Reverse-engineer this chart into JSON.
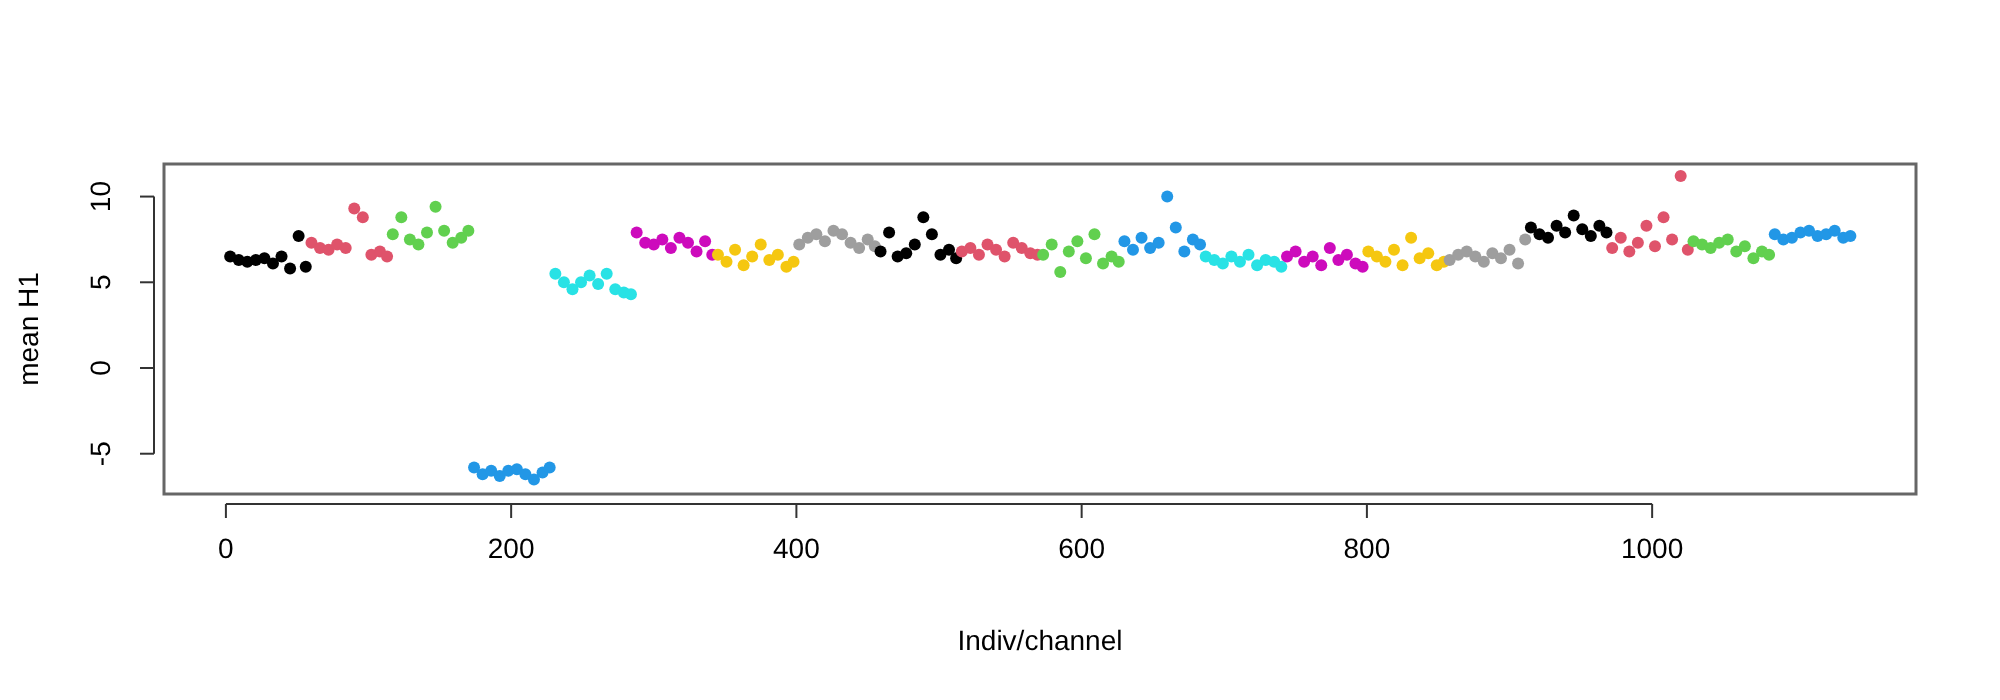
{
  "chart_data": {
    "type": "scatter",
    "xlabel": "Indiv/channel",
    "ylabel": "mean H1",
    "marker": "circle",
    "xlim": [
      -43.4,
      1185
    ],
    "ylim": [
      -7.35,
      11.9
    ],
    "xticks": [
      0,
      200,
      400,
      600,
      800,
      1000
    ],
    "yticks": [
      -5,
      0,
      5,
      10
    ],
    "series": [
      {
        "color": "#000000",
        "x": [
          3,
          9,
          15,
          21,
          27,
          33,
          39,
          45,
          51,
          56
        ],
        "values": [
          6.5,
          6.3,
          6.2,
          6.3,
          6.4,
          6.1,
          6.5,
          5.8,
          7.7,
          5.9
        ]
      },
      {
        "color": "#df536b",
        "x": [
          60,
          66,
          72,
          78,
          84,
          90,
          96,
          102,
          108,
          113
        ],
        "values": [
          7.3,
          7.0,
          6.9,
          7.2,
          7.0,
          9.3,
          8.8,
          6.6,
          6.8,
          6.5
        ]
      },
      {
        "color": "#61d04f",
        "x": [
          117,
          123,
          129,
          135,
          141,
          147,
          153,
          159,
          165,
          170
        ],
        "values": [
          7.8,
          8.8,
          7.5,
          7.2,
          7.9,
          9.4,
          8.0,
          7.3,
          7.6,
          8.0
        ]
      },
      {
        "color": "#2297e6",
        "x": [
          174,
          180,
          186,
          192,
          198,
          204,
          210,
          216,
          222,
          227
        ],
        "values": [
          -5.8,
          -6.2,
          -6.0,
          -6.3,
          -6.0,
          -5.9,
          -6.2,
          -6.5,
          -6.1,
          -5.8
        ]
      },
      {
        "color": "#28e2e5",
        "x": [
          231,
          237,
          243,
          249,
          255,
          261,
          267,
          273,
          279,
          284
        ],
        "values": [
          5.5,
          5.0,
          4.6,
          5.0,
          5.4,
          4.9,
          5.5,
          4.6,
          4.4,
          4.3
        ]
      },
      {
        "color": "#cd0bbc",
        "x": [
          288,
          294,
          300,
          306,
          312,
          318,
          324,
          330,
          336,
          341
        ],
        "values": [
          7.9,
          7.3,
          7.2,
          7.5,
          7.0,
          7.6,
          7.3,
          6.8,
          7.4,
          6.6
        ]
      },
      {
        "color": "#f5c710",
        "x": [
          345,
          351,
          357,
          363,
          369,
          375,
          381,
          387,
          393,
          398
        ],
        "values": [
          6.6,
          6.2,
          6.9,
          6.0,
          6.5,
          7.2,
          6.3,
          6.6,
          5.9,
          6.2
        ]
      },
      {
        "color": "#9e9e9e",
        "x": [
          402,
          408,
          414,
          420,
          426,
          432,
          438,
          444,
          450,
          455
        ],
        "values": [
          7.2,
          7.6,
          7.8,
          7.4,
          8.0,
          7.8,
          7.3,
          7.0,
          7.5,
          7.1
        ]
      },
      {
        "color": "#000000",
        "x": [
          459,
          465,
          471,
          477,
          483,
          489,
          495,
          501,
          507,
          512
        ],
        "values": [
          6.8,
          7.9,
          6.5,
          6.7,
          7.2,
          8.8,
          7.8,
          6.6,
          6.9,
          6.4
        ]
      },
      {
        "color": "#df536b",
        "x": [
          516,
          522,
          528,
          534,
          540,
          546,
          552,
          558,
          564,
          569
        ],
        "values": [
          6.8,
          7.0,
          6.6,
          7.2,
          6.9,
          6.5,
          7.3,
          7.0,
          6.7,
          6.6
        ]
      },
      {
        "color": "#61d04f",
        "x": [
          573,
          579,
          585,
          591,
          597,
          603,
          609,
          615,
          621,
          626
        ],
        "values": [
          6.6,
          7.2,
          5.6,
          6.8,
          7.4,
          6.4,
          7.8,
          6.1,
          6.5,
          6.2
        ]
      },
      {
        "color": "#2297e6",
        "x": [
          630,
          636,
          642,
          648,
          654,
          660,
          666,
          672,
          678,
          683
        ],
        "values": [
          7.4,
          6.9,
          7.6,
          7.0,
          7.3,
          10.0,
          8.2,
          6.8,
          7.5,
          7.2
        ]
      },
      {
        "color": "#28e2e5",
        "x": [
          687,
          693,
          699,
          705,
          711,
          717,
          723,
          729,
          735,
          740
        ],
        "values": [
          6.5,
          6.3,
          6.1,
          6.5,
          6.2,
          6.6,
          6.0,
          6.3,
          6.2,
          5.9
        ]
      },
      {
        "color": "#cd0bbc",
        "x": [
          744,
          750,
          756,
          762,
          768,
          774,
          780,
          786,
          792,
          797
        ],
        "values": [
          6.5,
          6.8,
          6.2,
          6.5,
          6.0,
          7.0,
          6.3,
          6.6,
          6.1,
          5.9
        ]
      },
      {
        "color": "#f5c710",
        "x": [
          801,
          807,
          813,
          819,
          825,
          831,
          837,
          843,
          849,
          854
        ],
        "values": [
          6.8,
          6.5,
          6.2,
          6.9,
          6.0,
          7.6,
          6.4,
          6.7,
          6.0,
          6.2
        ]
      },
      {
        "color": "#9e9e9e",
        "x": [
          858,
          864,
          870,
          876,
          882,
          888,
          894,
          900,
          906,
          911
        ],
        "values": [
          6.3,
          6.6,
          6.8,
          6.5,
          6.2,
          6.7,
          6.4,
          6.9,
          6.1,
          7.5
        ]
      },
      {
        "color": "#000000",
        "x": [
          915,
          921,
          927,
          933,
          939,
          945,
          951,
          957,
          963,
          968
        ],
        "values": [
          8.2,
          7.8,
          7.6,
          8.3,
          7.9,
          8.9,
          8.1,
          7.7,
          8.3,
          7.9
        ]
      },
      {
        "color": "#df536b",
        "x": [
          972,
          978,
          984,
          990,
          996,
          1002,
          1008,
          1014,
          1020,
          1025
        ],
        "values": [
          7.0,
          7.6,
          6.8,
          7.3,
          8.3,
          7.1,
          8.8,
          7.5,
          11.2,
          6.9
        ]
      },
      {
        "color": "#61d04f",
        "x": [
          1029,
          1035,
          1041,
          1047,
          1053,
          1059,
          1065,
          1071,
          1077,
          1082
        ],
        "values": [
          7.4,
          7.2,
          7.0,
          7.3,
          7.5,
          6.8,
          7.1,
          6.4,
          6.8,
          6.6
        ]
      },
      {
        "color": "#2297e6",
        "x": [
          1086,
          1092,
          1098,
          1104,
          1110,
          1116,
          1122,
          1128,
          1134,
          1139
        ],
        "values": [
          7.8,
          7.5,
          7.6,
          7.9,
          8.0,
          7.7,
          7.8,
          8.0,
          7.6,
          7.7
        ]
      }
    ]
  }
}
